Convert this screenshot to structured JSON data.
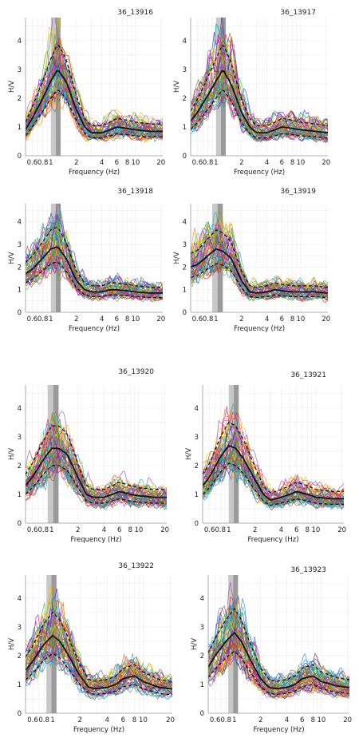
{
  "figure": {
    "columns": 2,
    "rows": 4
  },
  "chart_data": [
    {
      "type": "line",
      "title": "36_13916",
      "xlabel": "Frequency (Hz)",
      "ylabel": "H/V",
      "x_scale": "log",
      "xlim": [
        0.5,
        21
      ],
      "ylim": [
        0,
        4.8
      ],
      "x_tick_labels": [
        "0.6",
        "0.8",
        "1",
        "2",
        "4",
        "6",
        "8",
        "10",
        "20"
      ],
      "x_ticks": [
        0.6,
        0.8,
        1,
        2,
        4,
        6,
        8,
        10,
        20
      ],
      "y_ticks": [
        0,
        1,
        2,
        3,
        4
      ],
      "grid": true,
      "f0_band": [
        1.0,
        1.3
      ],
      "median": {
        "x": [
          0.5,
          0.6,
          0.8,
          1.0,
          1.2,
          1.5,
          2.0,
          2.5,
          3.0,
          4.0,
          5.0,
          6.0,
          8.0,
          10.0,
          15.0,
          20.0
        ],
        "y": [
          0.9,
          1.3,
          2.0,
          2.6,
          3.0,
          2.6,
          1.6,
          1.0,
          0.8,
          0.8,
          0.9,
          1.0,
          0.95,
          0.9,
          0.85,
          0.85
        ]
      },
      "std_band": {
        "upper_factor": 1.3,
        "lower_factor": 0.77
      }
    },
    {
      "type": "line",
      "title": "36_13917",
      "xlabel": "Frequency (Hz)",
      "ylabel": "H/V",
      "x_scale": "log",
      "xlim": [
        0.5,
        21
      ],
      "ylim": [
        0,
        4.8
      ],
      "x_tick_labels": [
        "0.6",
        "0.8",
        "1",
        "2",
        "4",
        "6",
        "8",
        "10",
        "20"
      ],
      "x_ticks": [
        0.6,
        0.8,
        1,
        2,
        4,
        6,
        8,
        10,
        20
      ],
      "y_ticks": [
        0,
        1,
        2,
        3,
        4
      ],
      "grid": true,
      "f0_band": [
        1.0,
        1.3
      ],
      "median": {
        "x": [
          0.5,
          0.6,
          0.8,
          1.0,
          1.2,
          1.5,
          2.0,
          2.5,
          3.0,
          4.0,
          5.0,
          6.0,
          8.0,
          10.0,
          15.0,
          20.0
        ],
        "y": [
          1.2,
          1.5,
          2.1,
          2.6,
          3.0,
          2.5,
          1.5,
          1.0,
          0.8,
          0.8,
          0.9,
          1.0,
          0.95,
          0.9,
          0.85,
          0.8
        ]
      },
      "std_band": {
        "upper_factor": 1.3,
        "lower_factor": 0.77
      }
    },
    {
      "type": "line",
      "title": "36_13918",
      "xlabel": "Frequency (Hz)",
      "ylabel": "H/V",
      "x_scale": "log",
      "xlim": [
        0.5,
        21
      ],
      "ylim": [
        0,
        4.8
      ],
      "x_tick_labels": [
        "0.6",
        "0.8",
        "1",
        "2",
        "4",
        "6",
        "8",
        "10",
        "20"
      ],
      "x_ticks": [
        0.6,
        0.8,
        1,
        2,
        4,
        6,
        8,
        10,
        20
      ],
      "y_ticks": [
        0,
        1,
        2,
        3,
        4
      ],
      "grid": true,
      "f0_band": [
        1.0,
        1.3
      ],
      "median": {
        "x": [
          0.5,
          0.6,
          0.8,
          1.0,
          1.2,
          1.5,
          2.0,
          2.5,
          3.0,
          4.0,
          5.0,
          6.0,
          8.0,
          10.0,
          15.0,
          20.0
        ],
        "y": [
          1.7,
          1.9,
          2.4,
          2.8,
          2.9,
          2.4,
          1.4,
          1.0,
          0.9,
          0.9,
          1.0,
          1.0,
          0.95,
          0.9,
          0.85,
          0.85
        ]
      },
      "std_band": {
        "upper_factor": 1.3,
        "lower_factor": 0.77
      }
    },
    {
      "type": "line",
      "title": "36_13919",
      "xlabel": "Frequency (Hz)",
      "ylabel": "H/V",
      "x_scale": "log",
      "xlim": [
        0.5,
        21
      ],
      "ylim": [
        0,
        4.8
      ],
      "x_tick_labels": [
        "0.6",
        "0.8",
        "1",
        "2",
        "4",
        "6",
        "8",
        "10",
        "20"
      ],
      "x_ticks": [
        0.6,
        0.8,
        1,
        2,
        4,
        6,
        8,
        10,
        20
      ],
      "y_ticks": [
        0,
        1,
        2,
        3,
        4
      ],
      "grid": true,
      "f0_band": [
        0.9,
        1.2
      ],
      "median": {
        "x": [
          0.5,
          0.6,
          0.8,
          1.0,
          1.2,
          1.5,
          2.0,
          2.5,
          3.0,
          4.0,
          5.0,
          6.0,
          8.0,
          10.0,
          15.0,
          20.0
        ],
        "y": [
          2.0,
          2.1,
          2.5,
          2.8,
          2.7,
          2.4,
          1.4,
          0.9,
          0.85,
          0.9,
          1.0,
          0.95,
          0.9,
          0.9,
          0.9,
          0.85
        ]
      },
      "std_band": {
        "upper_factor": 1.3,
        "lower_factor": 0.77
      }
    },
    {
      "type": "line",
      "title": "36_13920",
      "xlabel": "Frequency (Hz)",
      "ylabel": "H/V",
      "x_scale": "log",
      "xlim": [
        0.5,
        21
      ],
      "ylim": [
        0,
        4.8
      ],
      "x_tick_labels": [
        "0.6",
        "0.8",
        "1",
        "2",
        "4",
        "6",
        "8",
        "10",
        "20"
      ],
      "x_ticks": [
        0.6,
        0.8,
        1,
        2,
        4,
        6,
        8,
        10,
        20
      ],
      "y_ticks": [
        0,
        1,
        2,
        3,
        4
      ],
      "grid": true,
      "f0_band": [
        0.9,
        1.2
      ],
      "median": {
        "x": [
          0.5,
          0.6,
          0.8,
          1.0,
          1.2,
          1.5,
          2.0,
          2.5,
          3.0,
          4.0,
          5.0,
          6.0,
          8.0,
          10.0,
          15.0,
          20.0
        ],
        "y": [
          1.3,
          1.6,
          2.2,
          2.6,
          2.6,
          2.4,
          1.6,
          1.0,
          0.9,
          0.9,
          1.0,
          1.1,
          1.0,
          0.95,
          0.9,
          0.9
        ]
      },
      "std_band": {
        "upper_factor": 1.3,
        "lower_factor": 0.77
      }
    },
    {
      "type": "line",
      "title": "36_13921",
      "xlabel": "Frequency (Hz)",
      "ylabel": "H/V",
      "x_scale": "log",
      "xlim": [
        0.5,
        21
      ],
      "ylim": [
        0,
        4.8
      ],
      "x_tick_labels": [
        "0.6",
        "0.8",
        "1",
        "2",
        "4",
        "6",
        "8",
        "10",
        "20"
      ],
      "x_ticks": [
        0.6,
        0.8,
        1,
        2,
        4,
        6,
        8,
        10,
        20
      ],
      "y_ticks": [
        0,
        1,
        2,
        3,
        4
      ],
      "grid": true,
      "f0_band": [
        1.0,
        1.3
      ],
      "median": {
        "x": [
          0.5,
          0.6,
          0.8,
          1.0,
          1.2,
          1.5,
          2.0,
          2.5,
          3.0,
          4.0,
          5.0,
          6.0,
          8.0,
          10.0,
          15.0,
          20.0
        ],
        "y": [
          1.3,
          1.6,
          2.3,
          2.7,
          2.6,
          2.2,
          1.5,
          1.0,
          0.8,
          0.9,
          1.0,
          1.1,
          1.0,
          0.9,
          0.85,
          0.85
        ]
      },
      "std_band": {
        "upper_factor": 1.3,
        "lower_factor": 0.77
      }
    },
    {
      "type": "line",
      "title": "36_13922",
      "xlabel": "Frequency (Hz)",
      "ylabel": "H/V",
      "x_scale": "log",
      "xlim": [
        0.5,
        21
      ],
      "ylim": [
        0,
        4.8
      ],
      "x_tick_labels": [
        "0.6",
        "0.8",
        "1",
        "2",
        "4",
        "6",
        "8",
        "10",
        "20"
      ],
      "x_ticks": [
        0.6,
        0.8,
        1,
        2,
        4,
        6,
        8,
        10,
        20
      ],
      "y_ticks": [
        0,
        1,
        2,
        3,
        4
      ],
      "grid": true,
      "f0_band": [
        0.85,
        1.1
      ],
      "median": {
        "x": [
          0.5,
          0.6,
          0.8,
          1.0,
          1.2,
          1.5,
          2.0,
          2.5,
          3.0,
          4.0,
          5.0,
          6.0,
          8.0,
          10.0,
          15.0,
          20.0
        ],
        "y": [
          1.5,
          1.8,
          2.4,
          2.7,
          2.5,
          2.0,
          1.3,
          0.9,
          0.85,
          0.9,
          1.0,
          1.2,
          1.3,
          1.1,
          0.9,
          0.85
        ]
      },
      "std_band": {
        "upper_factor": 1.3,
        "lower_factor": 0.77
      }
    },
    {
      "type": "line",
      "title": "36_13923",
      "xlabel": "Frequency (Hz)",
      "ylabel": "H/V",
      "x_scale": "log",
      "xlim": [
        0.5,
        21
      ],
      "ylim": [
        0,
        4.8
      ],
      "x_tick_labels": [
        "0.6",
        "0.8",
        "1",
        "2",
        "4",
        "6",
        "8",
        "10",
        "20"
      ],
      "x_ticks": [
        0.6,
        0.8,
        1,
        2,
        4,
        6,
        8,
        10,
        20
      ],
      "y_ticks": [
        0,
        1,
        2,
        3,
        4
      ],
      "grid": true,
      "f0_band": [
        0.85,
        1.1
      ],
      "median": {
        "x": [
          0.5,
          0.6,
          0.8,
          1.0,
          1.2,
          1.5,
          2.0,
          2.5,
          3.0,
          4.0,
          5.0,
          6.0,
          8.0,
          10.0,
          15.0,
          20.0
        ],
        "y": [
          1.6,
          2.0,
          2.5,
          2.8,
          2.5,
          1.9,
          1.2,
          0.9,
          0.85,
          0.9,
          1.0,
          1.2,
          1.3,
          1.1,
          0.95,
          0.9
        ]
      },
      "std_band": {
        "upper_factor": 1.3,
        "lower_factor": 0.77
      }
    }
  ],
  "colors": {
    "individual_curves": [
      "#e41a1c",
      "#ff7f00",
      "#e6c800",
      "#4daf4a",
      "#00c0c0",
      "#377eb8",
      "#3a2bd6",
      "#984ea3",
      "#d40fb4",
      "#a65628",
      "#1b9e77",
      "#66a61e"
    ],
    "median_line": "#111111",
    "std_line": "#111111",
    "f0_band_light": "#c8c8c8",
    "f0_band_dark": "#9a9a9a",
    "grid": "#ececec",
    "axis": "#9a9a9a"
  }
}
